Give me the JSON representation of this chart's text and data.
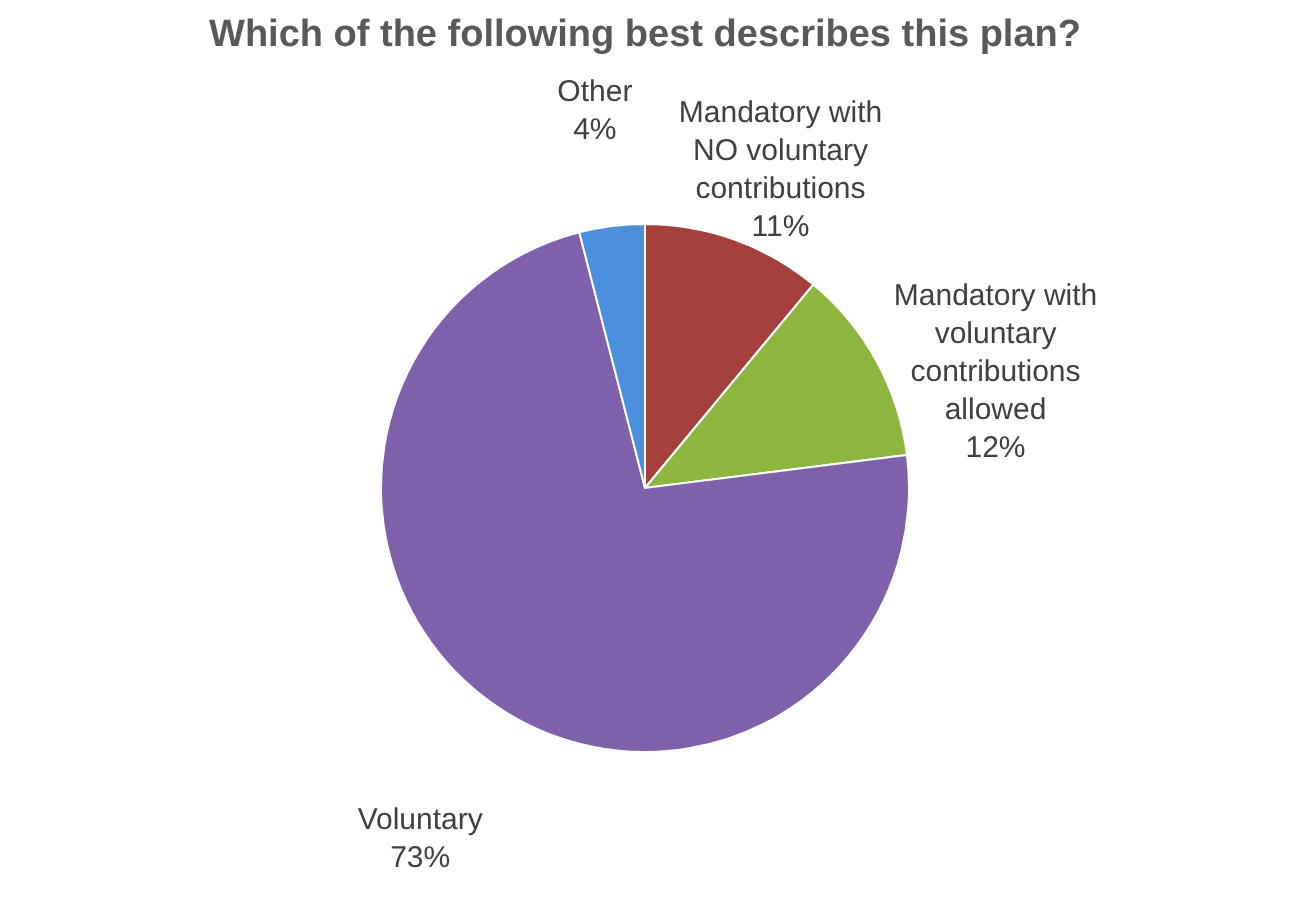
{
  "chart_data": {
    "type": "pie",
    "title": "Which of the following best describes this plan?",
    "categories": [
      "Mandatory with NO voluntary contributions",
      "Mandatory with voluntary contributions allowed",
      "Voluntary",
      "Other"
    ],
    "values": [
      11,
      12,
      73,
      4
    ],
    "colors": [
      "#a5403d",
      "#8db63f",
      "#7f60aa",
      "#4a90dc"
    ],
    "value_labels": [
      "11%",
      "12%",
      "73%",
      "4%"
    ],
    "legend": false
  }
}
